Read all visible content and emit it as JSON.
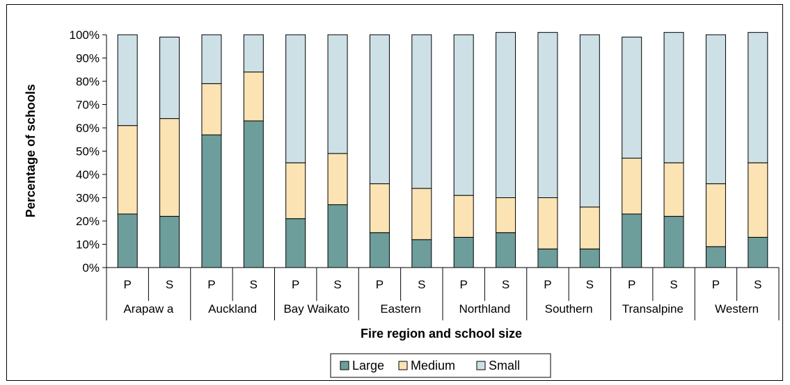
{
  "chart_data": {
    "type": "bar",
    "stacked": true,
    "percent": true,
    "title": "",
    "xlabel": "Fire region and school size",
    "ylabel": "Percentage of schools",
    "ylim": [
      0,
      100
    ],
    "yticks": [
      "0%",
      "10%",
      "20%",
      "30%",
      "40%",
      "50%",
      "60%",
      "70%",
      "80%",
      "90%",
      "100%"
    ],
    "groups": [
      "Arapaw a",
      "Auckland",
      "Bay Waikato",
      "Eastern",
      "Northland",
      "Southern",
      "Transalpine",
      "Western"
    ],
    "categories": [
      "P",
      "S",
      "P",
      "S",
      "P",
      "S",
      "P",
      "S",
      "P",
      "S",
      "P",
      "S",
      "P",
      "S",
      "P",
      "S"
    ],
    "series": [
      {
        "name": "Large",
        "color": "#6d9e9b",
        "values": [
          23,
          22,
          57,
          63,
          21,
          27,
          15,
          12,
          13,
          15,
          8,
          8,
          23,
          22,
          9,
          13
        ]
      },
      {
        "name": "Medium",
        "color": "#fbe3b4",
        "values": [
          38,
          42,
          22,
          21,
          24,
          22,
          21,
          22,
          18,
          15,
          22,
          18,
          24,
          23,
          27,
          32
        ]
      },
      {
        "name": "Small",
        "color": "#cde0e5",
        "values": [
          39,
          35,
          21,
          16,
          55,
          51,
          64,
          66,
          69,
          71,
          71,
          74,
          52,
          56,
          64,
          56
        ]
      }
    ],
    "legend_position": "bottom",
    "grid": false
  }
}
